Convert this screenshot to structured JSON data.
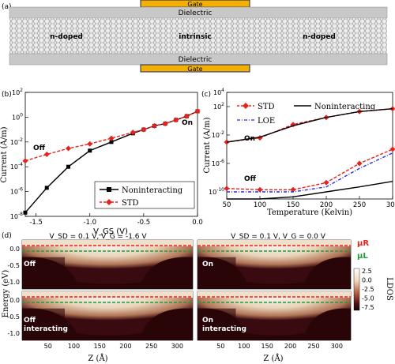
{
  "panel_a": {
    "label": "(a)",
    "gate_top": "Gate",
    "dielectric_top": "Dielectric",
    "regions": [
      "n-doped",
      "intrinsic",
      "n-doped"
    ],
    "dielectric_bottom": "Dielectric",
    "gate_bottom": "Gate",
    "colors": {
      "gate": "#f2b100",
      "dielectric": "#c8c8c8",
      "ribbon": "#e6e6e6"
    }
  },
  "panel_b": {
    "label": "(b)"
  },
  "panel_c": {
    "label": "(c)"
  },
  "panel_d": {
    "label": "(d)",
    "title_off": "V_SD = 0.1 V, V_G = -1.6 V",
    "title_on": "V_SD = 0.1 V, V_G = 0.0 V",
    "tag_off": "Off",
    "tag_on": "On",
    "tag_off_int": "Off",
    "tag_off_int2": "interacting",
    "tag_on_int": "On",
    "tag_on_int2": "interacting",
    "mu_r": "μR",
    "mu_l": "μL",
    "ylabel": "Energy (eV)",
    "xlabel": "Z (Å)",
    "yticks": [
      "0.0",
      "-0.5",
      "-1.0"
    ],
    "xticks": [
      "50",
      "100",
      "150",
      "200",
      "250",
      "300"
    ],
    "colorbar_label": "LDOS",
    "colorbar_ticks": [
      "2.5",
      "0.0",
      "-2.5",
      "-5.0",
      "-7.5"
    ],
    "colors": {
      "mu_r": "#e8231e",
      "mu_l": "#1f9d3a"
    }
  },
  "chart_data": [
    {
      "id": "b",
      "type": "line",
      "xlabel": "V_GS (V)",
      "ylabel": "Current (A/m)",
      "ylog": true,
      "xlim": [
        -1.6,
        0.0
      ],
      "ylim": [
        1e-08,
        100
      ],
      "xticks": [
        "-1.5",
        "-1.0",
        "-0.5",
        "0.0"
      ],
      "yticks": [
        "10^-8",
        "10^-6",
        "10^-4",
        "10^-2",
        "10^0",
        "10^2"
      ],
      "annotations": [
        "Off",
        "On"
      ],
      "legend": "bottom-right",
      "series": [
        {
          "name": "Noninteracting",
          "color": "#000000",
          "marker": "square",
          "x": [
            -1.6,
            -1.4,
            -1.2,
            -1.0,
            -0.8,
            -0.6,
            -0.5,
            -0.4,
            -0.3,
            -0.2,
            -0.1,
            0.0
          ],
          "y": [
            2e-08,
            2e-06,
            0.0001,
            0.002,
            0.01,
            0.05,
            0.1,
            0.2,
            0.3,
            0.6,
            1.2,
            3
          ]
        },
        {
          "name": "STD",
          "color": "#e8231e",
          "marker": "diamond",
          "dashed": true,
          "x": [
            -1.6,
            -1.4,
            -1.2,
            -1.0,
            -0.8,
            -0.6,
            -0.5,
            -0.4,
            -0.3,
            -0.2,
            -0.1,
            0.0
          ],
          "y": [
            0.0003,
            0.001,
            0.003,
            0.007,
            0.02,
            0.06,
            0.1,
            0.2,
            0.3,
            0.6,
            1.2,
            3
          ]
        }
      ]
    },
    {
      "id": "c",
      "type": "line",
      "xlabel": "Temperature (Kelvin)",
      "ylabel": "Current (A/m)",
      "ylog": true,
      "xlim": [
        50,
        300
      ],
      "ylim": [
        1e-11,
        10000.0
      ],
      "xticks": [
        "50",
        "100",
        "150",
        "200",
        "250",
        "300"
      ],
      "yticks": [
        "10^-10",
        "10^-6",
        "10^-2",
        "10^2",
        "10^4"
      ],
      "annotations": [
        "On",
        "Off"
      ],
      "legend": "top",
      "series": [
        {
          "name": "STD",
          "color": "#e8231e",
          "marker": "diamond",
          "dashed": true,
          "x": [
            50,
            100,
            150,
            200,
            250,
            300
          ],
          "y": [
            0.001,
            0.004,
            0.3,
            3,
            20,
            50
          ]
        },
        {
          "name": "STD",
          "color": "#e8231e",
          "marker": "diamond",
          "dashed": true,
          "x": [
            50,
            100,
            150,
            200,
            250,
            300
          ],
          "y": [
            3e-10,
            2e-10,
            2e-10,
            2e-09,
            1e-06,
            0.0001
          ]
        },
        {
          "name": "LOE",
          "color": "#2b2bd6",
          "dashdot": true,
          "x": [
            50,
            100,
            150,
            200,
            250,
            300
          ],
          "y": [
            1e-10,
            1e-10,
            1e-10,
            5e-10,
            2e-07,
            3e-05
          ]
        },
        {
          "name": "Noninteracting",
          "color": "#000000",
          "x": [
            50,
            100,
            150,
            200,
            250,
            300
          ],
          "y": [
            0.001,
            0.005,
            0.2,
            3,
            20,
            50
          ]
        },
        {
          "name": "Noninteracting",
          "color": "#000000",
          "x": [
            50,
            100,
            150,
            200,
            250,
            300
          ],
          "y": [
            1e-11,
            1e-11,
            2e-11,
            1e-10,
            5e-10,
            3e-09
          ]
        }
      ]
    }
  ]
}
